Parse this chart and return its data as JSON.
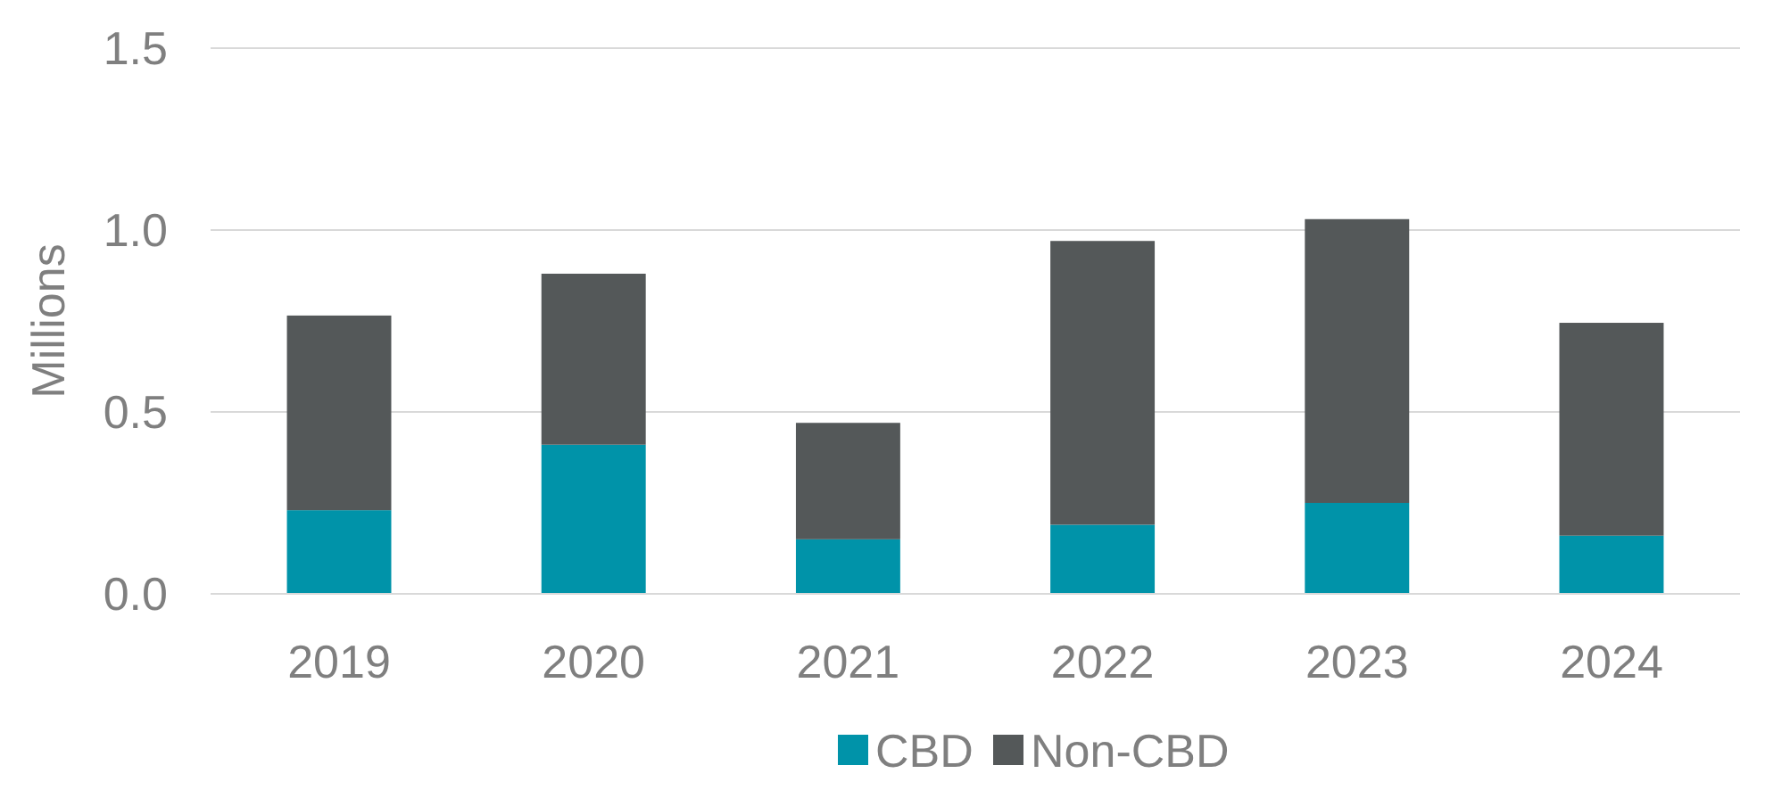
{
  "chart_data": {
    "type": "bar",
    "ylabel": "Millions",
    "categories": [
      "2019",
      "2020",
      "2021",
      "2022",
      "2023",
      "2024"
    ],
    "series": [
      {
        "name": "CBD",
        "color": "#0093a9",
        "values": [
          0.23,
          0.41,
          0.15,
          0.19,
          0.25,
          0.16
        ]
      },
      {
        "name": "Non-CBD",
        "color": "#545859",
        "values": [
          0.535,
          0.47,
          0.32,
          0.78,
          0.78,
          0.585
        ]
      }
    ],
    "stacked": true,
    "ylim": [
      0,
      1.5
    ],
    "yticks": [
      {
        "value": 0,
        "label": "0.0"
      },
      {
        "value": 0.5,
        "label": "0.5"
      },
      {
        "value": 1,
        "label": "1.0"
      },
      {
        "value": 1.5,
        "label": "1.5"
      }
    ],
    "grid": "y",
    "legend": "bottom"
  }
}
